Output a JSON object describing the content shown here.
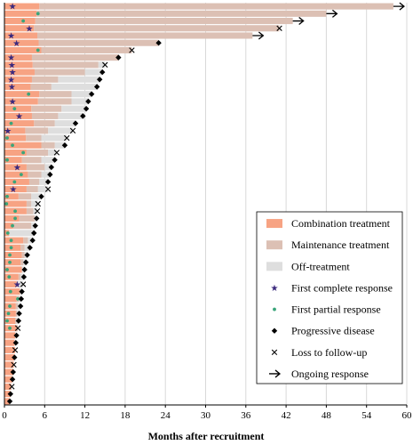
{
  "chart_data": {
    "type": "swimmer",
    "xlabel": "Months after recruitment",
    "ylabel": "",
    "xlim": [
      0,
      60
    ],
    "xticks": [
      0,
      6,
      12,
      18,
      24,
      30,
      36,
      42,
      48,
      54,
      60
    ],
    "grid": "vertical",
    "legend_position": "bottom-right",
    "colors": {
      "combination": "#f7a383",
      "maintenance": "#dcc0b4",
      "off": "#dedede",
      "cr": "#3c2a7e",
      "pr": "#3aa57a",
      "pd": "#000000",
      "ltfu": "#000000",
      "ongoing": "#000000"
    },
    "legend": [
      {
        "key": "combination",
        "label": "Combination treatment"
      },
      {
        "key": "maintenance",
        "label": "Maintenance treatment"
      },
      {
        "key": "off",
        "label": "Off-treatment"
      },
      {
        "key": "cr",
        "label": "First complete response"
      },
      {
        "key": "pr",
        "label": "First partial response"
      },
      {
        "key": "pd",
        "label": "Progressive disease"
      },
      {
        "key": "ltfu",
        "label": "Loss to follow-up"
      },
      {
        "key": "ongoing",
        "label": "Ongoing response"
      }
    ],
    "patients": [
      {
        "comb": 5.2,
        "maint": 58.0,
        "total": 58.0,
        "cr": 1.2,
        "end": "ongoing"
      },
      {
        "comb": 4.8,
        "maint": 48.0,
        "total": 48.0,
        "pr": 5.0,
        "end": "ongoing"
      },
      {
        "comb": 4.6,
        "maint": 43.0,
        "total": 43.0,
        "pr": 2.8,
        "end": "ongoing"
      },
      {
        "comb": 4.4,
        "maint": 41.0,
        "total": 41.0,
        "cr": 3.7,
        "end": "ltfu"
      },
      {
        "comb": 4.9,
        "maint": 37.0,
        "total": 37.0,
        "cr": 1.0,
        "end": "ongoing"
      },
      {
        "comb": 5.1,
        "maint": 23.0,
        "total": 23.0,
        "cr": 1.8,
        "end": "pd"
      },
      {
        "comb": 5.5,
        "maint": 19.0,
        "total": 19.0,
        "pr": 5.0,
        "end": "ltfu"
      },
      {
        "comb": 4.1,
        "maint": 17.0,
        "total": 17.0,
        "cr": 1.0,
        "end": "pd"
      },
      {
        "comb": 4.2,
        "maint": 14.0,
        "total": 15.0,
        "cr": 1.1,
        "end": "ltfu"
      },
      {
        "comb": 4.5,
        "maint": 12.0,
        "total": 14.6,
        "cr": 1.2,
        "end": "pd"
      },
      {
        "comb": 4.1,
        "maint": 8.0,
        "total": 14.2,
        "cr": 1.0,
        "end": "pd"
      },
      {
        "comb": 3.9,
        "maint": 7.0,
        "total": 13.8,
        "cr": 1.1,
        "end": "pd"
      },
      {
        "comb": 5.2,
        "maint": 10.0,
        "total": 13.0,
        "pr": 3.6,
        "end": "pd"
      },
      {
        "comb": 5.0,
        "maint": 10.0,
        "total": 12.5,
        "cr": 1.2,
        "end": "pd"
      },
      {
        "comb": 4.0,
        "maint": 8.5,
        "total": 12.2,
        "pr": 1.5,
        "end": "pd"
      },
      {
        "comb": 4.1,
        "maint": 8.0,
        "total": 11.7,
        "cr": 2.2,
        "end": "pd"
      },
      {
        "comb": 4.4,
        "maint": 7.5,
        "total": 10.6,
        "pr": 1.0,
        "end": "pd"
      },
      {
        "comb": 3.1,
        "maint": 6.5,
        "total": 10.2,
        "cr": 0.5,
        "end": "ltfu"
      },
      {
        "comb": 3.2,
        "maint": 5.5,
        "total": 9.3,
        "pr": 0.4,
        "end": "ltfu"
      },
      {
        "comb": 5.5,
        "maint": 7.5,
        "total": 9.0,
        "pr": 1.2,
        "end": "pd"
      },
      {
        "comb": 3.3,
        "maint": 6.5,
        "total": 7.8,
        "pr": 2.8,
        "end": "ltfu"
      },
      {
        "comb": 2.6,
        "maint": 5.5,
        "total": 7.5,
        "pr": 0.4,
        "end": "pd"
      },
      {
        "comb": 3.3,
        "maint": 6.0,
        "total": 7.0,
        "cr": 1.9,
        "end": "pd"
      },
      {
        "comb": 3.5,
        "maint": 5.5,
        "total": 6.8,
        "pr": 2.5,
        "end": "pd"
      },
      {
        "comb": 3.7,
        "maint": 5.2,
        "total": 6.5,
        "pr": 1.5,
        "end": "pd"
      },
      {
        "comb": 3.3,
        "maint": 5.0,
        "total": 6.5,
        "cr": 1.3,
        "end": "ltfu"
      },
      {
        "comb": 2.1,
        "maint": 4.0,
        "total": 5.5,
        "pr": 0.4,
        "end": "pd"
      },
      {
        "comb": 3.3,
        "maint": 4.0,
        "total": 5.0,
        "pr": 0.3,
        "end": "ltfu"
      },
      {
        "comb": 3.3,
        "maint": 4.3,
        "total": 4.9,
        "pr": 1.6,
        "end": "ltfu"
      },
      {
        "comb": 2.2,
        "maint": 4.5,
        "total": 4.8,
        "pr": 1.6,
        "end": "pd"
      },
      {
        "comb": 1.3,
        "maint": 4.0,
        "total": 4.6,
        "pr": 1.2,
        "end": "pd"
      },
      {
        "comb": 0.7,
        "maint": 0.7,
        "total": 4.4,
        "pr": 0.5,
        "end": "pd"
      },
      {
        "comb": 2.8,
        "maint": 3.5,
        "total": 4.2,
        "pr": 1.0,
        "end": "pd"
      },
      {
        "comb": 2.4,
        "maint": 3.0,
        "total": 3.8,
        "pr": 1.0,
        "end": "pd"
      },
      {
        "comb": 2.6,
        "maint": 3.0,
        "total": 3.4,
        "pr": 0.8,
        "end": "pd"
      },
      {
        "comb": 2.4,
        "maint": 2.8,
        "total": 3.2,
        "pr": 0.8,
        "end": "pd"
      },
      {
        "comb": 2.6,
        "maint": 2.6,
        "total": 3.0,
        "pr": 0.4,
        "end": "pd"
      },
      {
        "comb": 2.1,
        "maint": 2.4,
        "total": 2.9,
        "pr": 0.7,
        "end": "pd"
      },
      {
        "comb": 1.8,
        "maint": 2.0,
        "total": 2.8,
        "cr": 1.9,
        "end": "ltfu"
      },
      {
        "comb": 2.3,
        "maint": 2.3,
        "total": 2.6,
        "pr": 0.9,
        "end": "pd"
      },
      {
        "comb": 1.8,
        "maint": 2.2,
        "total": 2.5,
        "pr": 2.0,
        "end": "pd"
      },
      {
        "comb": 1.7,
        "maint": 2.0,
        "total": 2.4,
        "pr": 0.8,
        "end": "pd"
      },
      {
        "comb": 1.7,
        "maint": 1.9,
        "total": 2.2,
        "pr": 0.6,
        "end": "pd"
      },
      {
        "comb": 1.6,
        "maint": 1.8,
        "total": 2.1,
        "pr": 0.4,
        "end": "pd"
      },
      {
        "comb": 1.8,
        "maint": 2.0,
        "total": 2.0,
        "pr": 0.8,
        "end": "ltfu"
      },
      {
        "comb": 1.6,
        "maint": 1.6,
        "total": 1.8,
        "end": "pd"
      },
      {
        "comb": 1.5,
        "maint": 1.5,
        "total": 1.7,
        "end": "pd"
      },
      {
        "comb": 1.6,
        "maint": 1.6,
        "total": 1.6,
        "end": "ltfu"
      },
      {
        "comb": 1.5,
        "maint": 1.5,
        "total": 1.5,
        "end": "pd"
      },
      {
        "comb": 1.4,
        "maint": 1.4,
        "total": 1.4,
        "end": "ltfu"
      },
      {
        "comb": 1.3,
        "maint": 1.3,
        "total": 1.3,
        "end": "pd"
      },
      {
        "comb": 1.2,
        "maint": 1.2,
        "total": 1.2,
        "end": "pd"
      },
      {
        "comb": 1.0,
        "maint": 1.0,
        "total": 1.1,
        "end": "ltfu"
      },
      {
        "comb": 0.9,
        "maint": 0.9,
        "total": 0.9,
        "end": "pd"
      },
      {
        "comb": 0.8,
        "maint": 0.8,
        "total": 0.8,
        "end": "pd"
      }
    ]
  }
}
